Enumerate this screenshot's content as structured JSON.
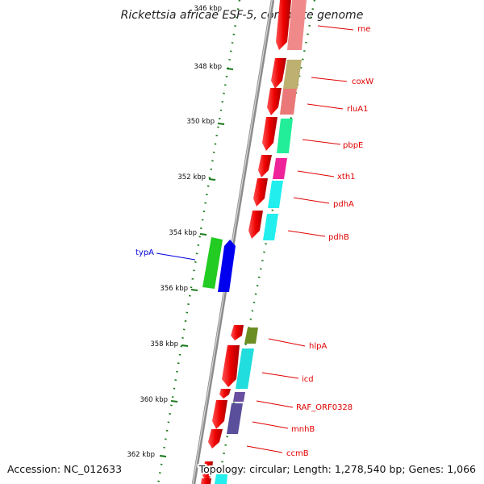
{
  "title": "Rickettsia africae ESF-5, complete genome",
  "footer": {
    "accession": "Accession: NC_012633",
    "summary": "Topology: circular; Length: 1,278,540 bp; Genes: 1,066"
  },
  "ruler": [
    "346 kbp",
    "348 kbp",
    "350 kbp",
    "352 kbp",
    "354 kbp",
    "356 kbp",
    "358 kbp",
    "360 kbp",
    "362 kbp"
  ],
  "genes": [
    {
      "name": "rne",
      "color": "#f08a8a",
      "strand": "forward"
    },
    {
      "name": "coxW",
      "color": "#bdb070",
      "strand": "forward"
    },
    {
      "name": "rluA1",
      "color": "#ea7878",
      "strand": "forward"
    },
    {
      "name": "pbpE",
      "color": "#22ee99",
      "strand": "forward"
    },
    {
      "name": "xth1",
      "color": "#ee2299",
      "strand": "forward"
    },
    {
      "name": "pdhA",
      "color": "#22eeee",
      "strand": "forward"
    },
    {
      "name": "pdhB",
      "color": "#22eeee",
      "strand": "forward"
    },
    {
      "name": "typA",
      "color": "#22cc22",
      "strand": "reverse"
    },
    {
      "name": "hlpA",
      "color": "#6b8e23",
      "strand": "forward"
    },
    {
      "name": "icd",
      "color": "#22dddd",
      "strand": "forward"
    },
    {
      "name": "RAF_ORF0328",
      "color": "#6a4fa0",
      "strand": "forward"
    },
    {
      "name": "mnhB",
      "color": "#5a4f9a",
      "strand": "forward"
    },
    {
      "name": "ccmB",
      "color": "#dd2222",
      "strand": "forward"
    }
  ]
}
